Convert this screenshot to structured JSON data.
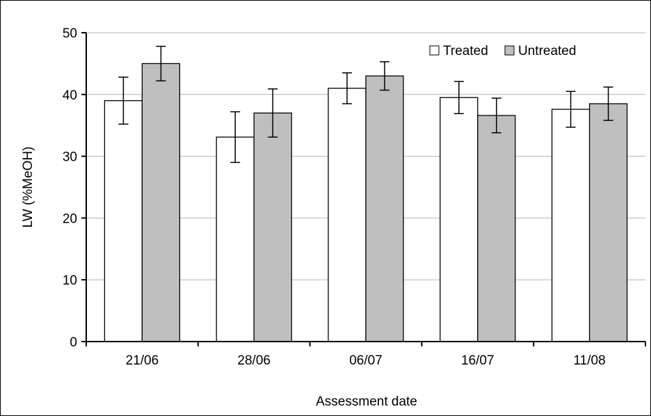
{
  "chart_data": {
    "type": "bar",
    "title": "",
    "xlabel": "Assessment date",
    "ylabel": "LW (%MeOH)",
    "categories": [
      "21/06",
      "28/06",
      "06/07",
      "16/07",
      "11/08"
    ],
    "ylim": [
      0,
      50
    ],
    "yticks": [
      0,
      10,
      20,
      30,
      40,
      50
    ],
    "grid": true,
    "legend_position": "top-right",
    "series": [
      {
        "name": "Treated",
        "color": "#ffffff",
        "values": [
          39.0,
          33.1,
          41.0,
          39.5,
          37.6
        ],
        "error": [
          3.8,
          4.1,
          2.5,
          2.6,
          2.9
        ]
      },
      {
        "name": "Untreated",
        "color": "#bfbfbf",
        "values": [
          45.0,
          37.0,
          43.0,
          36.6,
          38.5
        ],
        "error": [
          2.8,
          3.9,
          2.3,
          2.8,
          2.7
        ]
      }
    ]
  }
}
